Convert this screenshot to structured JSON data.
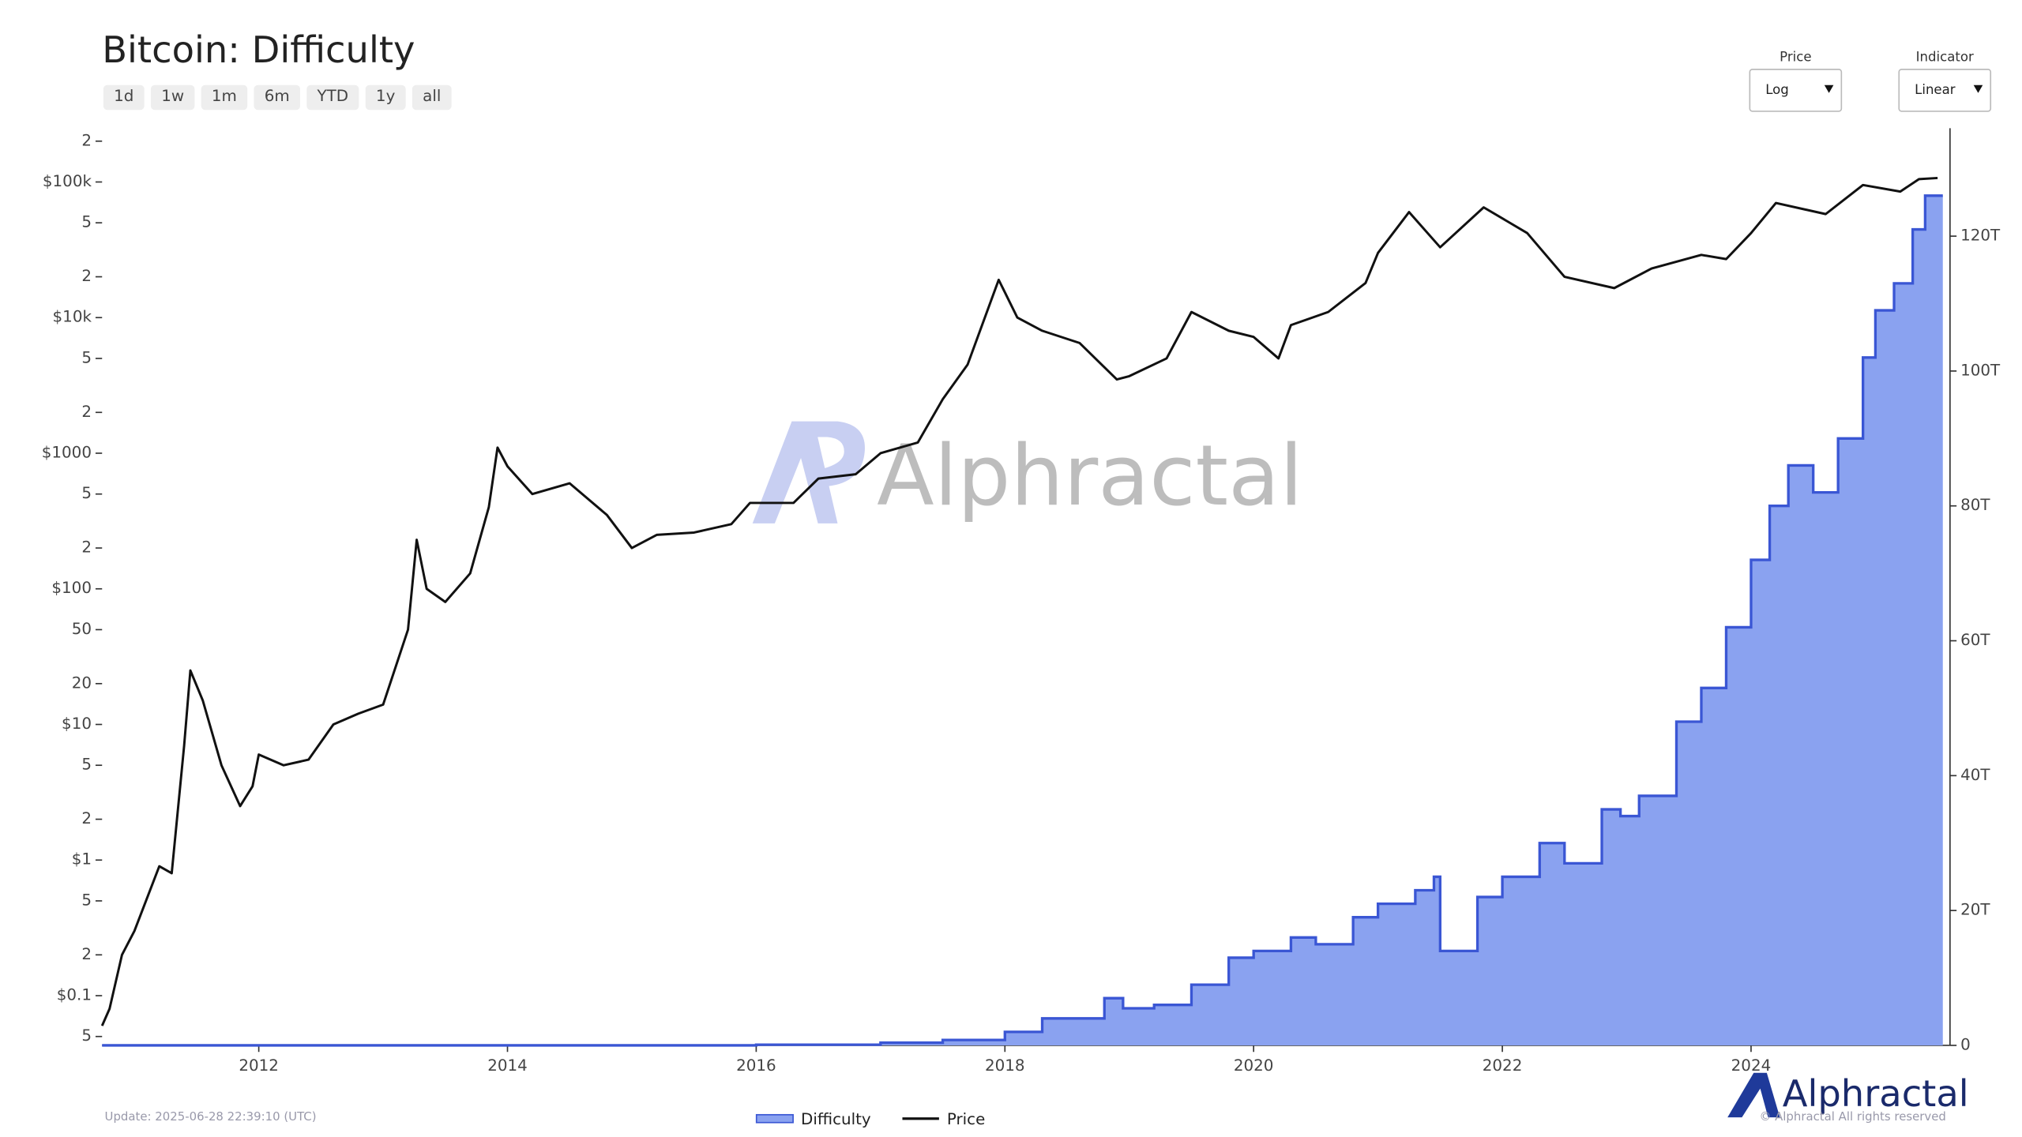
{
  "chart_data": {
    "type": "line",
    "title": "Bitcoin: Difficulty",
    "xlim": [
      2010.74,
      2025.6
    ],
    "xticks": [
      2012,
      2014,
      2016,
      2018,
      2020,
      2022,
      2024
    ],
    "log_scale": true,
    "ylim": [
      0.043,
      249000
    ],
    "yticks": [
      {
        "value": 0.05,
        "label": "5"
      },
      {
        "value": 0.1,
        "label": "$0.1"
      },
      {
        "value": 0.2,
        "label": "2"
      },
      {
        "value": 0.5,
        "label": "5"
      },
      {
        "value": 1,
        "label": "$1"
      },
      2,
      5,
      {
        "value": 10,
        "label": "$10"
      },
      20,
      50,
      {
        "value": 100,
        "label": "$100"
      },
      {
        "value": 200,
        "label": "2"
      },
      {
        "value": 500,
        "label": "5"
      },
      {
        "value": 1000,
        "label": "$1000"
      },
      {
        "value": 2000,
        "label": "2"
      },
      {
        "value": 5000,
        "label": "5"
      },
      {
        "value": 10000,
        "label": "$10k"
      },
      {
        "value": 20000,
        "label": "2"
      },
      {
        "value": 50000,
        "label": "5"
      },
      {
        "value": 100000,
        "label": "$100k"
      },
      {
        "value": 200000,
        "label": "2"
      }
    ],
    "y2lim": [
      0,
      136
    ],
    "y2ticks": [
      0,
      {
        "value": 20,
        "label": "20T"
      },
      {
        "value": 40,
        "label": "40T"
      },
      {
        "value": 60,
        "label": "60T"
      },
      {
        "value": 80,
        "label": "80T"
      },
      {
        "value": 100,
        "label": "100T"
      },
      {
        "value": 120,
        "label": "120T"
      }
    ],
    "series": [
      {
        "name": "Difficulty",
        "type": "area",
        "axis": "y2",
        "color": "#3a56d4",
        "fill": "#8aa2f0",
        "x": [
          2010.74,
          2016.0,
          2017.0,
          2017.5,
          2018.0,
          2018.3,
          2018.8,
          2018.95,
          2019.2,
          2019.5,
          2019.8,
          2020.0,
          2020.3,
          2020.5,
          2020.8,
          2021.0,
          2021.3,
          2021.45,
          2021.5,
          2021.8,
          2022.0,
          2022.3,
          2022.5,
          2022.8,
          2022.95,
          2023.1,
          2023.4,
          2023.6,
          2023.8,
          2024.0,
          2024.15,
          2024.3,
          2024.5,
          2024.7,
          2024.9,
          2025.0,
          2025.15,
          2025.3,
          2025.4,
          2025.5
        ],
        "values": [
          0,
          0.1,
          0.4,
          0.8,
          2,
          4,
          7,
          5.5,
          6,
          9,
          13,
          14,
          16,
          15,
          19,
          21,
          23,
          25,
          14,
          22,
          25,
          30,
          27,
          35,
          34,
          37,
          48,
          53,
          62,
          72,
          80,
          86,
          82,
          90,
          102,
          109,
          113,
          121,
          126,
          126
        ]
      },
      {
        "name": "Price",
        "type": "line",
        "axis": "y",
        "color": "#111111",
        "x": [
          2010.74,
          2010.8,
          2010.9,
          2011.0,
          2011.2,
          2011.3,
          2011.4,
          2011.45,
          2011.55,
          2011.7,
          2011.85,
          2011.95,
          2012.0,
          2012.2,
          2012.4,
          2012.6,
          2012.8,
          2013.0,
          2013.2,
          2013.27,
          2013.35,
          2013.5,
          2013.7,
          2013.85,
          2013.92,
          2014.0,
          2014.2,
          2014.5,
          2014.8,
          2015.0,
          2015.2,
          2015.5,
          2015.8,
          2015.95,
          2016.3,
          2016.5,
          2016.8,
          2017.0,
          2017.3,
          2017.5,
          2017.7,
          2017.95,
          2018.1,
          2018.3,
          2018.6,
          2018.9,
          2019.0,
          2019.3,
          2019.5,
          2019.8,
          2020.0,
          2020.2,
          2020.3,
          2020.6,
          2020.9,
          2021.0,
          2021.25,
          2021.5,
          2021.85,
          2022.2,
          2022.5,
          2022.9,
          2023.2,
          2023.6,
          2023.8,
          2024.0,
          2024.2,
          2024.6,
          2024.9,
          2025.2,
          2025.35,
          2025.5
        ],
        "values": [
          0.06,
          0.08,
          0.2,
          0.3,
          0.9,
          0.8,
          7,
          25,
          15,
          5,
          2.5,
          3.5,
          6,
          5,
          5.5,
          10,
          12,
          14,
          50,
          230,
          100,
          80,
          130,
          400,
          1100,
          800,
          500,
          600,
          350,
          200,
          250,
          260,
          300,
          430,
          430,
          650,
          700,
          1000,
          1200,
          2500,
          4500,
          19000,
          10000,
          8000,
          6500,
          3500,
          3700,
          5000,
          11000,
          8000,
          7200,
          5000,
          8800,
          11000,
          18000,
          30000,
          60000,
          33000,
          65000,
          42000,
          20000,
          16500,
          23000,
          29000,
          27000,
          42000,
          70000,
          58000,
          95000,
          85000,
          105000,
          107000
        ]
      }
    ],
    "watermark": "Alphractal",
    "update": "Update: 2025-06-28 22:39:10 (UTC)",
    "copyright": "© Alphractal All rights reserved"
  },
  "controls": {
    "ranges": [
      "1d",
      "1w",
      "1m",
      "6m",
      "YTD",
      "1y",
      "all"
    ],
    "price": {
      "label": "Price",
      "value": "Log"
    },
    "indicator": {
      "label": "Indicator",
      "value": "Linear"
    }
  }
}
